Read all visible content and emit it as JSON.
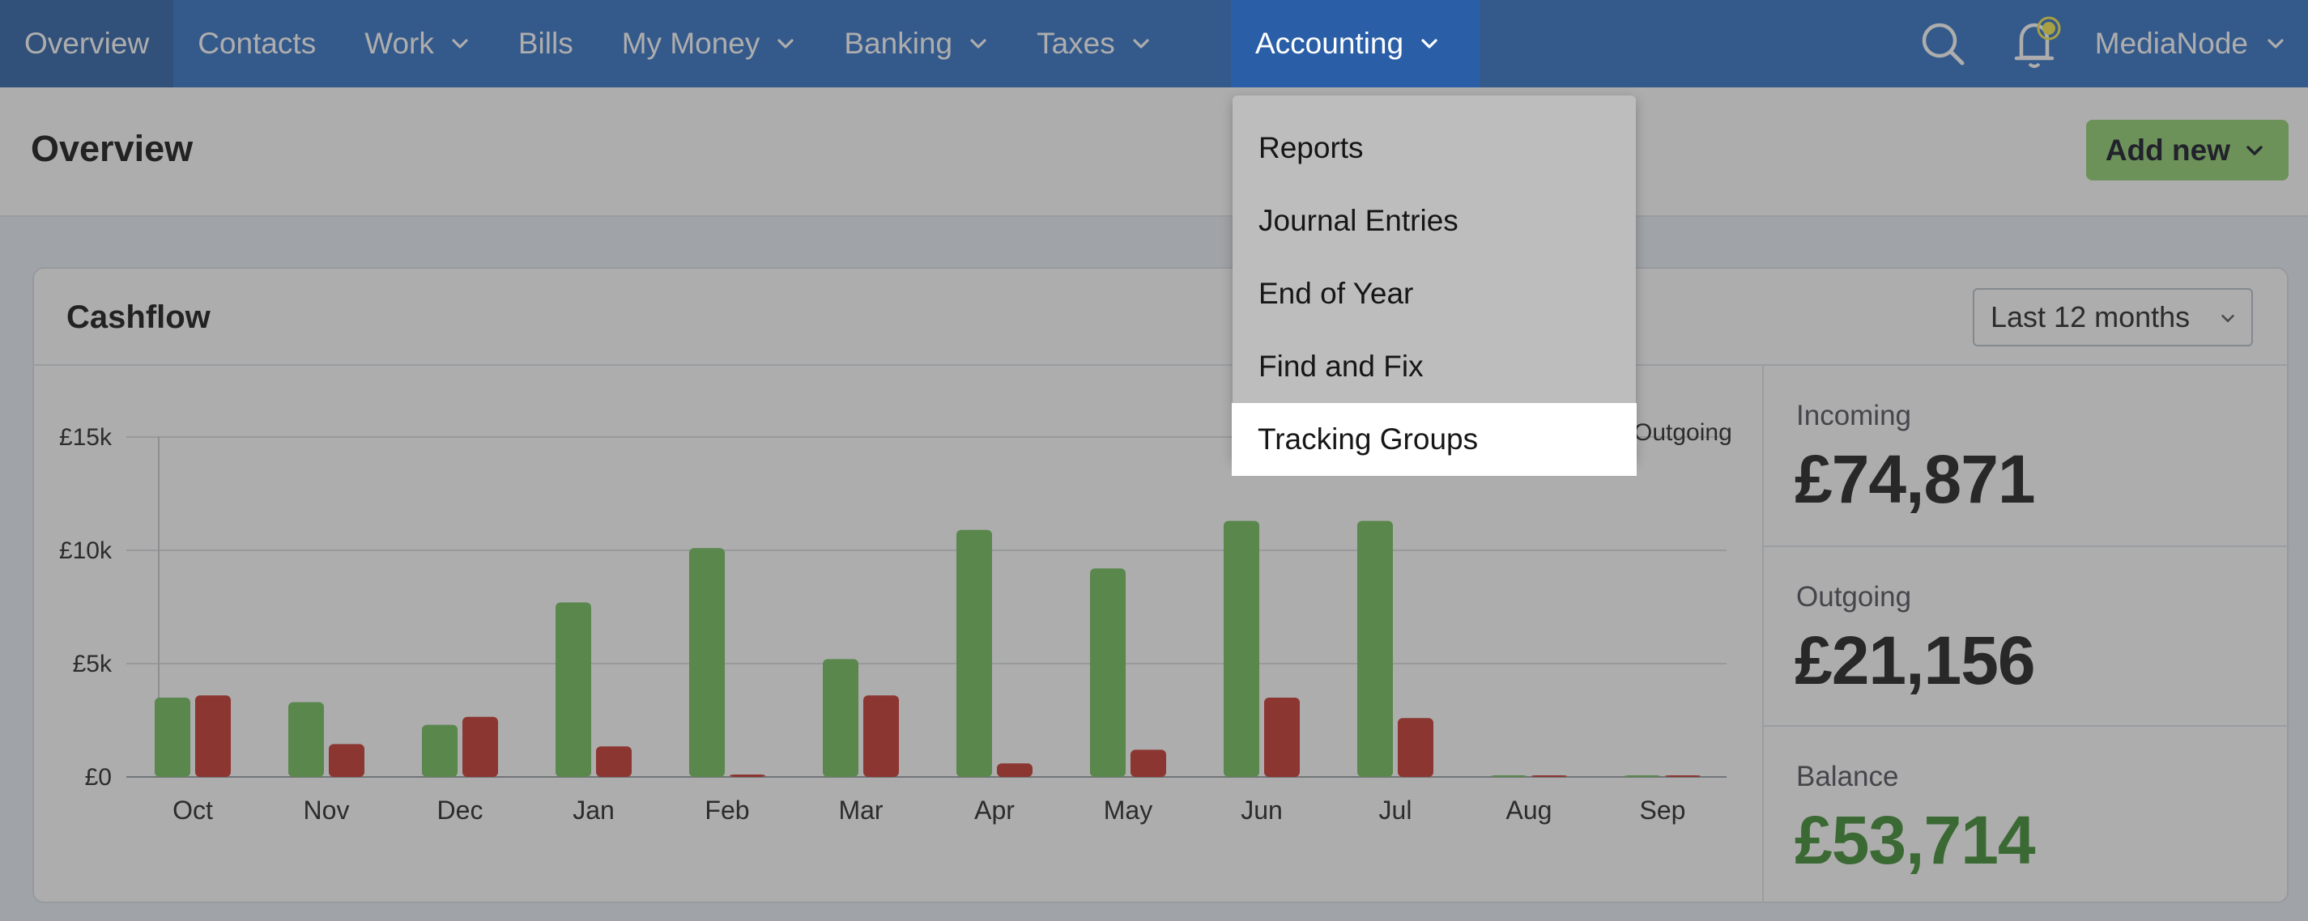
{
  "nav": {
    "items": [
      {
        "label": "Overview",
        "dropdown": false,
        "active": true
      },
      {
        "label": "Contacts",
        "dropdown": false
      },
      {
        "label": "Work",
        "dropdown": true
      },
      {
        "label": "Bills",
        "dropdown": false
      },
      {
        "label": "My Money",
        "dropdown": true
      },
      {
        "label": "Banking",
        "dropdown": true
      },
      {
        "label": "Taxes",
        "dropdown": true
      },
      {
        "label": "Accounting",
        "dropdown": true,
        "open": true
      }
    ],
    "user_label": "MediaNode",
    "icons": [
      "search-icon",
      "bell-icon"
    ]
  },
  "accounting_menu": {
    "label": "Accounting",
    "items": [
      "Reports",
      "Journal Entries",
      "End of Year",
      "Find and Fix",
      "Tracking Groups"
    ],
    "highlighted": "Tracking Groups"
  },
  "header": {
    "title": "Overview",
    "add_new_label": "Add new"
  },
  "cashflow": {
    "title": "Cashflow",
    "period": "Last 12 months",
    "legend_outgoing": "Outgoing",
    "stats": {
      "incoming_label": "Incoming",
      "incoming_value": "£74,871",
      "outgoing_label": "Outgoing",
      "outgoing_value": "£21,156",
      "balance_label": "Balance",
      "balance_value": "£53,714"
    }
  },
  "colors": {
    "incoming": "#6fbe58",
    "outgoing": "#c7322a",
    "accent": "#2f6fc4",
    "add_button": "#8fd16f",
    "balance": "#3c8a2e"
  },
  "chart_data": {
    "type": "bar",
    "categories": [
      "Oct",
      "Nov",
      "Dec",
      "Jan",
      "Feb",
      "Mar",
      "Apr",
      "May",
      "Jun",
      "Jul",
      "Aug",
      "Sep"
    ],
    "series": [
      {
        "values": [
          3500,
          3300,
          2300,
          7700,
          10100,
          5200,
          10900,
          9200,
          11300,
          11300,
          0,
          0
        ]
      },
      {
        "name": "Outgoing",
        "values": [
          3600,
          1450,
          2650,
          1350,
          100,
          3600,
          600,
          1200,
          3500,
          2600,
          0,
          0
        ]
      }
    ],
    "yticks": [
      "£0",
      "£5k",
      "£10k",
      "£15k"
    ],
    "ytick_values": [
      0,
      5000,
      10000,
      15000
    ],
    "ylim": [
      0,
      15000
    ],
    "grid": true,
    "legend": "top-right"
  }
}
